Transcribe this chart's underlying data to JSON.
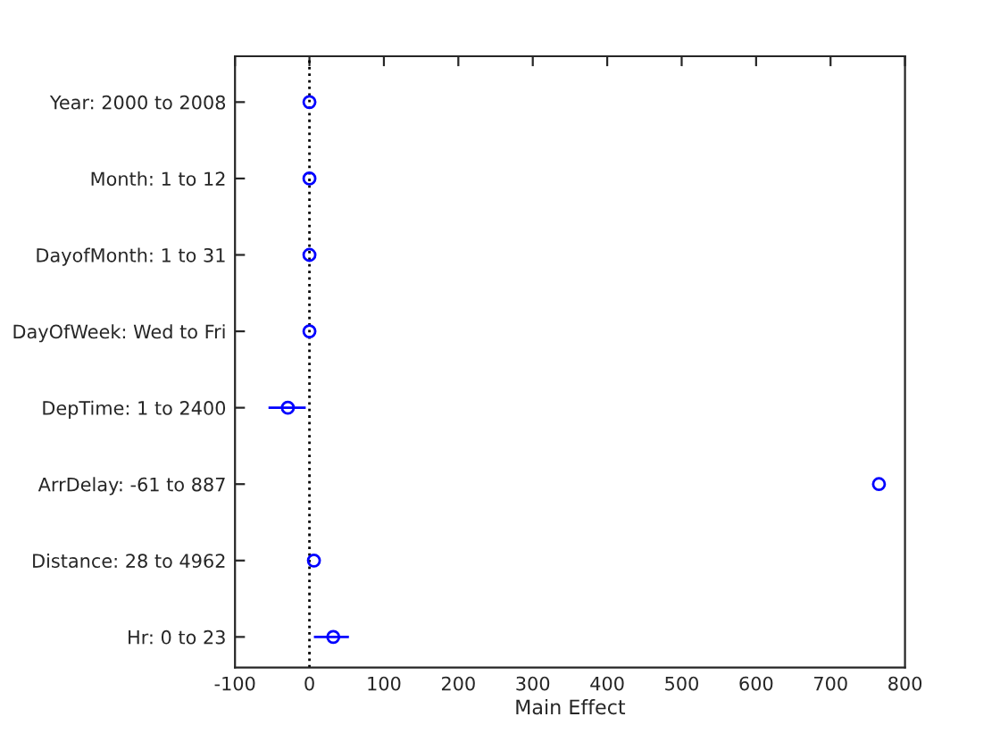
{
  "chart_data": {
    "type": "scatter",
    "orientation": "horizontal",
    "xlabel": "Main Effect",
    "categories": [
      "Year: 2000 to 2008",
      "Month: 1 to 12",
      "DayofMonth: 1 to 31",
      "DayOfWeek: Wed to Fri",
      "DepTime: 1 to 2400",
      "ArrDelay: -61 to 887",
      "Distance: 28 to 4962",
      "Hr: 0 to 23"
    ],
    "series": [
      {
        "color": "#0000ff",
        "values": [
          0,
          0,
          0,
          0,
          -29,
          765,
          6,
          32
        ],
        "errors": [
          null,
          null,
          null,
          null,
          [
            -55,
            -5
          ],
          null,
          null,
          [
            6,
            53
          ]
        ]
      }
    ],
    "marker": "circle",
    "xlim": [
      -100,
      800
    ],
    "xticks": [
      -100,
      0,
      100,
      200,
      300,
      400,
      500,
      600,
      700,
      800
    ],
    "ref_lines": [
      {
        "axis": "x",
        "value": 0,
        "color": "#000000",
        "line_style": "dotted"
      }
    ],
    "grid": false,
    "legend": false
  }
}
